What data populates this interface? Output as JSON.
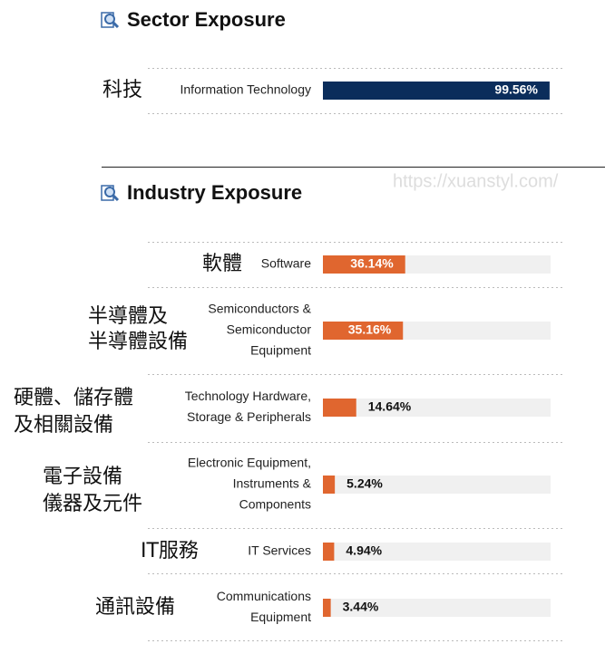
{
  "sector": {
    "title": "Sector Exposure",
    "xlim": [
      0,
      100
    ],
    "color": "#0b2d5b",
    "rows": [
      {
        "label_zh": [
          "科技"
        ],
        "label_en": [
          "Information Technology"
        ],
        "value": 99.56,
        "value_label": "99.56%"
      }
    ]
  },
  "industry": {
    "title": "Industry Exposure",
    "xlim": [
      0,
      100
    ],
    "color": "#e0662f",
    "rows": [
      {
        "label_zh": [
          "軟體"
        ],
        "label_en": [
          "Software"
        ],
        "value": 36.14,
        "value_label": "36.14%"
      },
      {
        "label_zh": [
          "半導體及",
          "半導體設備"
        ],
        "label_en": [
          "Semiconductors &",
          "Semiconductor",
          "Equipment"
        ],
        "value": 35.16,
        "value_label": "35.16%"
      },
      {
        "label_zh": [
          "硬體、儲存體",
          "及相關設備"
        ],
        "label_en": [
          "Technology Hardware,",
          "Storage & Peripherals"
        ],
        "value": 14.64,
        "value_label": "14.64%"
      },
      {
        "label_zh": [
          "電子設備",
          "儀器及元件"
        ],
        "label_en": [
          "Electronic Equipment,",
          "Instruments &",
          "Components"
        ],
        "value": 5.24,
        "value_label": "5.24%"
      },
      {
        "label_zh": [
          "IT服務"
        ],
        "label_en": [
          "IT Services"
        ],
        "value": 4.94,
        "value_label": "4.94%"
      },
      {
        "label_zh": [
          "通訊設備"
        ],
        "label_en": [
          "Communications",
          "Equipment"
        ],
        "value": 3.44,
        "value_label": "3.44%"
      }
    ]
  },
  "watermark": "https://xuanstyl.com/"
}
